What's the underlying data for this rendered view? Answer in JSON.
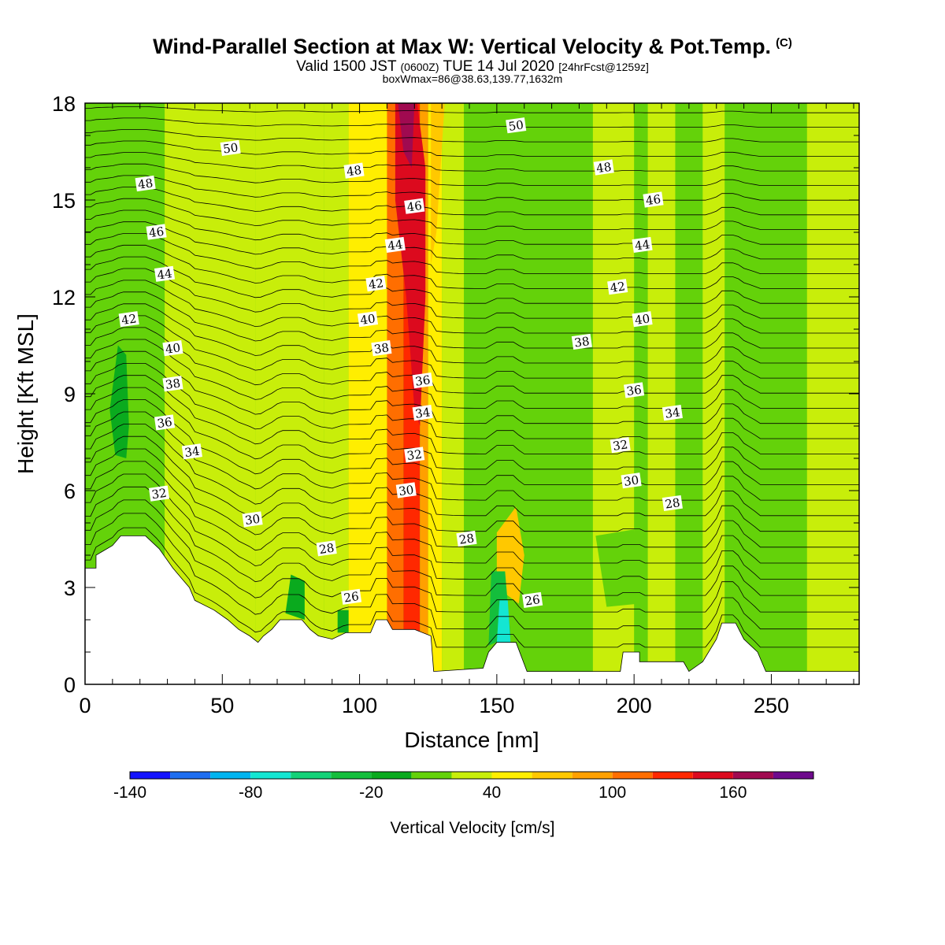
{
  "title": {
    "main": "Wind-Parallel Section at Max W: Vertical Velocity & Pot.Temp.",
    "copyright": "(C)",
    "valid_prefix": "Valid 1500 JST",
    "valid_utc": "(0600Z)",
    "valid_date": "TUE 14 Jul 2020",
    "forecast": "[24hrFcst@1259z]",
    "boxwmax": "boxWmax=86@38.63,139.77,1632m"
  },
  "chart_data": {
    "type": "heatmap",
    "xlabel": "Distance [nm]",
    "ylabel": "Height [Kft MSL]",
    "xlim": [
      0,
      282
    ],
    "ylim": [
      0,
      18
    ],
    "xticks": [
      0,
      50,
      100,
      150,
      200,
      250
    ],
    "yticks": [
      0,
      3,
      6,
      9,
      12,
      15,
      18
    ],
    "colorbar": {
      "label": "Vertical Velocity [cm/s]",
      "levels": [
        -140,
        -120,
        -100,
        -80,
        -60,
        -40,
        -20,
        0,
        20,
        40,
        60,
        80,
        100,
        120,
        140,
        160,
        180
      ],
      "tick_labels": [
        -140,
        -80,
        -20,
        40,
        100,
        160
      ],
      "colors": [
        "#1414ff",
        "#1e6ef0",
        "#00b4f0",
        "#14e6d2",
        "#14d278",
        "#14be3c",
        "#0aaa1e",
        "#64d20a",
        "#c8ee0a",
        "#ffee00",
        "#ffc800",
        "#ffa000",
        "#ff6e00",
        "#ff2800",
        "#dc0a1e",
        "#a00a50",
        "#6e0a8c"
      ]
    },
    "theta_contour_labels": [
      {
        "value": 50,
        "x": 53,
        "y": 16.6
      },
      {
        "value": 50,
        "x": 157,
        "y": 17.3
      },
      {
        "value": 48,
        "x": 22,
        "y": 15.5
      },
      {
        "value": 48,
        "x": 98,
        "y": 15.9
      },
      {
        "value": 48,
        "x": 189,
        "y": 16.0
      },
      {
        "value": 46,
        "x": 26,
        "y": 14.0
      },
      {
        "value": 46,
        "x": 120,
        "y": 14.8
      },
      {
        "value": 46,
        "x": 207,
        "y": 15.0
      },
      {
        "value": 44,
        "x": 29,
        "y": 12.7
      },
      {
        "value": 44,
        "x": 113,
        "y": 13.6
      },
      {
        "value": 44,
        "x": 203,
        "y": 13.6
      },
      {
        "value": 42,
        "x": 16,
        "y": 11.3
      },
      {
        "value": 42,
        "x": 106,
        "y": 12.4
      },
      {
        "value": 42,
        "x": 194,
        "y": 12.3
      },
      {
        "value": 40,
        "x": 32,
        "y": 10.4
      },
      {
        "value": 40,
        "x": 103,
        "y": 11.3
      },
      {
        "value": 40,
        "x": 203,
        "y": 11.3
      },
      {
        "value": 38,
        "x": 32,
        "y": 9.3
      },
      {
        "value": 38,
        "x": 108,
        "y": 10.4
      },
      {
        "value": 38,
        "x": 181,
        "y": 10.6
      },
      {
        "value": 36,
        "x": 29,
        "y": 8.1
      },
      {
        "value": 36,
        "x": 123,
        "y": 9.4
      },
      {
        "value": 36,
        "x": 200,
        "y": 9.1
      },
      {
        "value": 34,
        "x": 39,
        "y": 7.2
      },
      {
        "value": 34,
        "x": 123,
        "y": 8.4
      },
      {
        "value": 34,
        "x": 214,
        "y": 8.4
      },
      {
        "value": 32,
        "x": 27,
        "y": 5.9
      },
      {
        "value": 32,
        "x": 120,
        "y": 7.1
      },
      {
        "value": 32,
        "x": 195,
        "y": 7.4
      },
      {
        "value": 30,
        "x": 61,
        "y": 5.1
      },
      {
        "value": 30,
        "x": 117,
        "y": 6.0
      },
      {
        "value": 30,
        "x": 199,
        "y": 6.3
      },
      {
        "value": 28,
        "x": 88,
        "y": 4.2
      },
      {
        "value": 28,
        "x": 139,
        "y": 4.5
      },
      {
        "value": 28,
        "x": 214,
        "y": 5.6
      },
      {
        "value": 26,
        "x": 97,
        "y": 2.7
      },
      {
        "value": 26,
        "x": 163,
        "y": 2.6
      }
    ]
  }
}
